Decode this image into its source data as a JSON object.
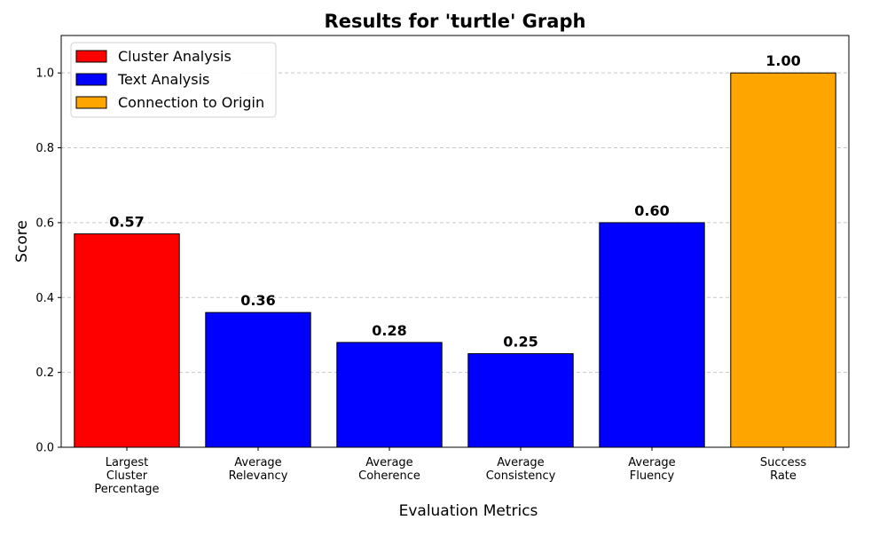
{
  "chart_data": {
    "type": "bar",
    "title": "Results for 'turtle' Graph",
    "xlabel": "Evaluation Metrics",
    "ylabel": "Score",
    "ylim": [
      0,
      1.1
    ],
    "yticks": [
      "0.0",
      "0.2",
      "0.4",
      "0.6",
      "0.8",
      "1.0"
    ],
    "grid": "y-dashed",
    "legend_position": "top-left",
    "categories": [
      [
        "Largest",
        "Cluster",
        "Percentage"
      ],
      [
        "Average",
        "Relevancy"
      ],
      [
        "Average",
        "Coherence"
      ],
      [
        "Average",
        "Consistency"
      ],
      [
        "Average",
        "Fluency"
      ],
      [
        "Success",
        "Rate"
      ]
    ],
    "values": [
      0.57,
      0.36,
      0.28,
      0.25,
      0.6,
      1.0
    ],
    "value_labels": [
      "0.57",
      "0.36",
      "0.28",
      "0.25",
      "0.60",
      "1.00"
    ],
    "bar_groups": [
      0,
      1,
      1,
      1,
      1,
      2
    ],
    "legend": [
      {
        "label": "Cluster Analysis",
        "color": "#ff0000"
      },
      {
        "label": "Text Analysis",
        "color": "#0000ff"
      },
      {
        "label": "Connection to Origin",
        "color": "#ffa500"
      }
    ]
  }
}
